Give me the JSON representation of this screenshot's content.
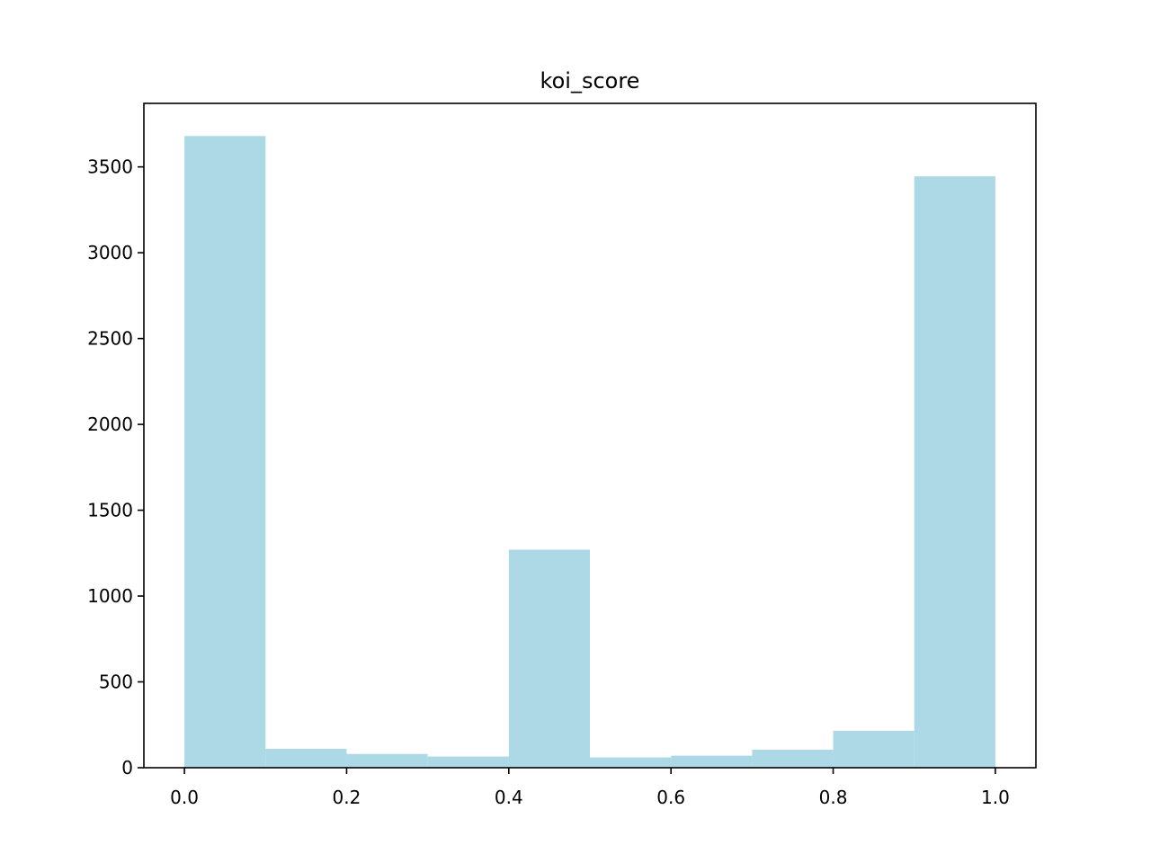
{
  "chart_data": {
    "type": "bar",
    "title": "koi_score",
    "xlabel": "",
    "ylabel": "",
    "bin_edges": [
      0.0,
      0.1,
      0.2,
      0.3,
      0.4,
      0.5,
      0.6,
      0.7,
      0.8,
      0.9,
      1.0
    ],
    "values": [
      3680,
      110,
      80,
      65,
      1270,
      60,
      70,
      105,
      215,
      3445
    ],
    "xlim": [
      -0.05,
      1.05
    ],
    "ylim": [
      0,
      3870
    ],
    "xticks": [
      0.0,
      0.2,
      0.4,
      0.6,
      0.8,
      1.0
    ],
    "xtick_labels": [
      "0.0",
      "0.2",
      "0.4",
      "0.6",
      "0.8",
      "1.0"
    ],
    "yticks": [
      0,
      500,
      1000,
      1500,
      2000,
      2500,
      3000,
      3500
    ],
    "ytick_labels": [
      "0",
      "500",
      "1000",
      "1500",
      "2000",
      "2500",
      "3000",
      "3500"
    ],
    "grid": false,
    "bar_color": "#add8e6"
  }
}
